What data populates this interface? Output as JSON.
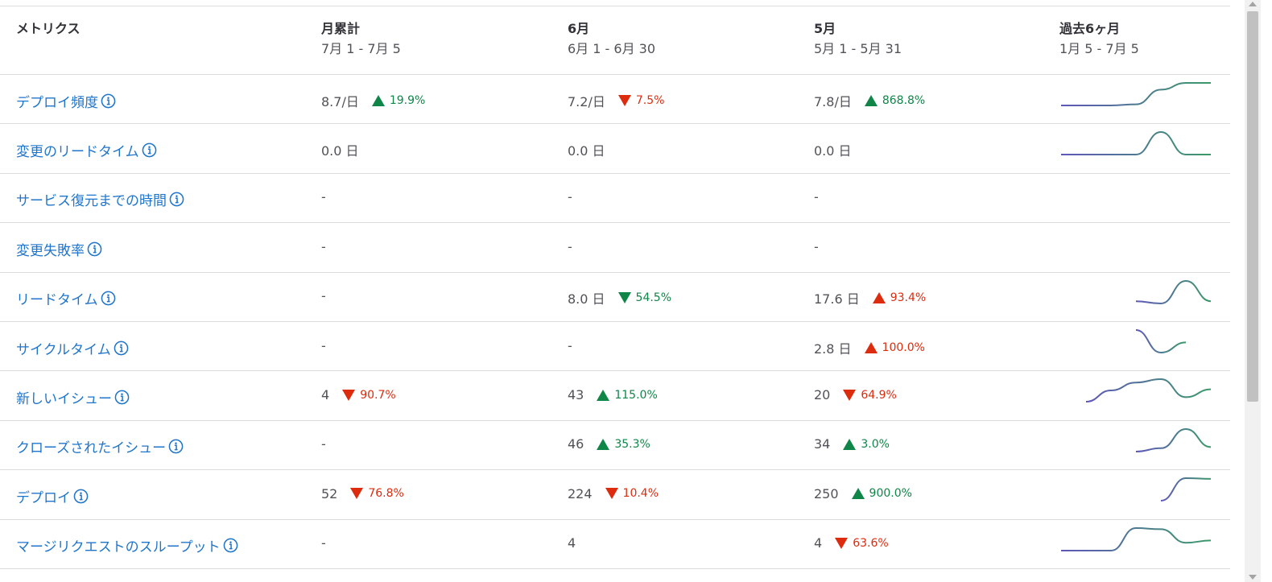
{
  "header": {
    "metric": "メトリクス",
    "columns": [
      {
        "title": "月累計",
        "range": "7月 1 - 7月 5"
      },
      {
        "title": "6月",
        "range": "6月 1 - 6月 30"
      },
      {
        "title": "5月",
        "range": "5月 1 - 5月 31"
      },
      {
        "title": "過去6ヶ月",
        "range": "1月 5 - 7月 5"
      }
    ]
  },
  "colors": {
    "link": "#1f75cb",
    "positive": "#108548",
    "negative": "#dd2b0e",
    "spark_start": "#5f57b8",
    "spark_end": "#3b9a6a"
  },
  "icons": {
    "info": "info-circle-icon",
    "up": "triangle-up-icon",
    "down": "triangle-down-icon"
  },
  "rows": [
    {
      "label": "デプロイ頻度",
      "cells": [
        {
          "value": "8.7/日",
          "trend": {
            "dir": "up",
            "good": true,
            "text": "19.9%"
          }
        },
        {
          "value": "7.2/日",
          "trend": {
            "dir": "down",
            "good": false,
            "text": "7.5%"
          }
        },
        {
          "value": "7.8/日",
          "trend": {
            "dir": "up",
            "good": true,
            "text": "868.8%"
          }
        }
      ],
      "spark": [
        0,
        0,
        0,
        0.05,
        0.7,
        1,
        1
      ]
    },
    {
      "label": "変更のリードタイム",
      "cells": [
        {
          "value": "0.0 日"
        },
        {
          "value": "0.0 日"
        },
        {
          "value": "0.0 日"
        }
      ],
      "spark": [
        0,
        0,
        0,
        0,
        1,
        0,
        0
      ]
    },
    {
      "label": "サービス復元までの時間",
      "cells": [
        {
          "value": "-"
        },
        {
          "value": "-"
        },
        {
          "value": "-"
        }
      ],
      "spark": []
    },
    {
      "label": "変更失敗率",
      "cells": [
        {
          "value": "-"
        },
        {
          "value": "-"
        },
        {
          "value": "-"
        }
      ],
      "spark": []
    },
    {
      "label": "リードタイム",
      "cells": [
        {
          "value": "-"
        },
        {
          "value": "8.0 日",
          "trend": {
            "dir": "down",
            "good": true,
            "text": "54.5%"
          }
        },
        {
          "value": "17.6 日",
          "trend": {
            "dir": "up",
            "good": false,
            "text": "93.4%"
          }
        }
      ],
      "spark": [
        null,
        null,
        null,
        0.1,
        0,
        1,
        0.1
      ]
    },
    {
      "label": "サイクルタイム",
      "cells": [
        {
          "value": "-"
        },
        {
          "value": "-"
        },
        {
          "value": "2.8 日",
          "trend": {
            "dir": "up",
            "good": false,
            "text": "100.0%"
          }
        }
      ],
      "spark": [
        null,
        null,
        null,
        1,
        0,
        0.45,
        null
      ]
    },
    {
      "label": "新しいイシュー",
      "cells": [
        {
          "value": "4",
          "trend": {
            "dir": "down",
            "good": false,
            "text": "90.7%"
          }
        },
        {
          "value": "43",
          "trend": {
            "dir": "up",
            "good": true,
            "text": "115.0%"
          }
        },
        {
          "value": "20",
          "trend": {
            "dir": "down",
            "good": false,
            "text": "64.9%"
          }
        }
      ],
      "spark": [
        null,
        0,
        0.5,
        0.85,
        1,
        0.2,
        0.55
      ]
    },
    {
      "label": "クローズされたイシュー",
      "cells": [
        {
          "value": "-"
        },
        {
          "value": "46",
          "trend": {
            "dir": "up",
            "good": true,
            "text": "35.3%"
          }
        },
        {
          "value": "34",
          "trend": {
            "dir": "up",
            "good": true,
            "text": "3.0%"
          }
        }
      ],
      "spark": [
        null,
        null,
        null,
        0,
        0.15,
        1,
        0.2
      ]
    },
    {
      "label": "デプロイ",
      "cells": [
        {
          "value": "52",
          "trend": {
            "dir": "down",
            "good": false,
            "text": "76.8%"
          }
        },
        {
          "value": "224",
          "trend": {
            "dir": "down",
            "good": false,
            "text": "10.4%"
          }
        },
        {
          "value": "250",
          "trend": {
            "dir": "up",
            "good": true,
            "text": "900.0%"
          }
        }
      ],
      "spark": [
        null,
        null,
        null,
        null,
        0,
        1,
        0.97
      ]
    },
    {
      "label": "マージリクエストのスループット",
      "cells": [
        {
          "value": "-"
        },
        {
          "value": "4"
        },
        {
          "value": "4",
          "trend": {
            "dir": "down",
            "good": false,
            "text": "63.6%"
          }
        }
      ],
      "spark": [
        0,
        0,
        0,
        1,
        0.95,
        0.35,
        0.45
      ]
    }
  ]
}
